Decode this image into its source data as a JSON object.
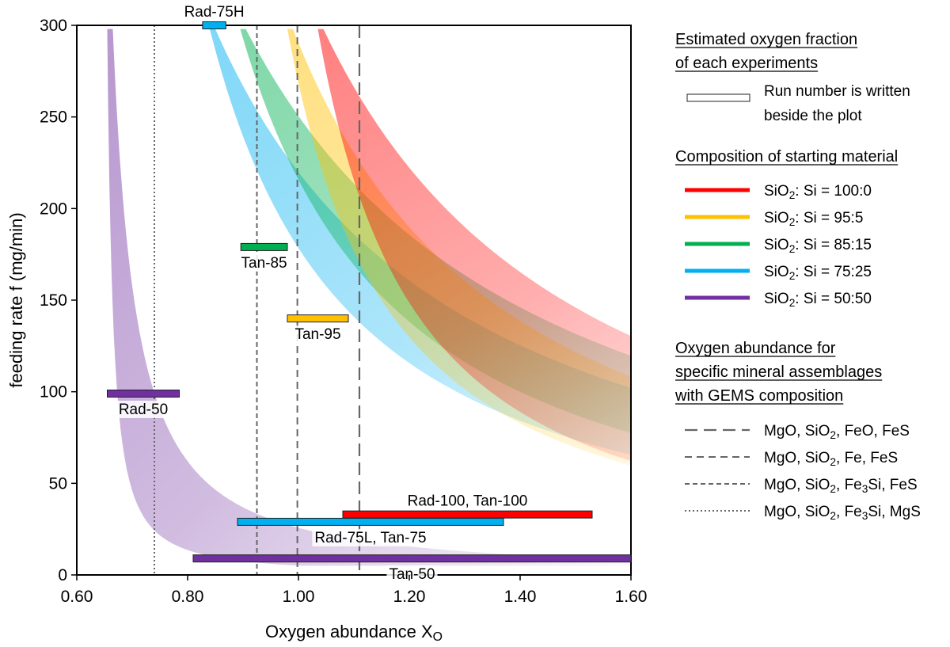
{
  "chart_data": {
    "type": "scatter",
    "xlabel": "Oxygen abundance X",
    "xlabel_sub": "O",
    "ylabel": "feeding rate f (mg/min)",
    "xlim": [
      0.6,
      1.6
    ],
    "ylim": [
      0,
      300
    ],
    "x_ticks": [
      "0.60",
      "0.80",
      "1.00",
      "1.20",
      "1.40",
      "1.60"
    ],
    "y_ticks": [
      "0",
      "50",
      "100",
      "150",
      "200",
      "250",
      "300"
    ],
    "bands": [
      {
        "color": "#7030a0",
        "x_top": 0.66,
        "y_top": 298,
        "k_left": 0.012,
        "k_right": 0.05
      },
      {
        "color": "#00b0f0",
        "x_top": 0.845,
        "y_top": 298,
        "k_left": 0.3,
        "k_right": 0.52
      },
      {
        "color": "#00b050",
        "x_top": 0.9,
        "y_top": 298,
        "k_left": 0.34,
        "k_right": 0.61
      },
      {
        "color": "#ffc000",
        "x_top": 0.985,
        "y_top": 298,
        "k_left": 0.22,
        "k_right": 0.46
      },
      {
        "color": "#ff0000",
        "x_top": 1.04,
        "y_top": 298,
        "k_left": 0.21,
        "k_right": 0.56
      }
    ],
    "runs": [
      {
        "label": "Rad-75H",
        "color": "#00b0f0",
        "x": [
          0.827,
          0.869
        ],
        "y": 300,
        "label_pos": "above"
      },
      {
        "label": "Tan-85",
        "color": "#00b050",
        "x": [
          0.896,
          0.98
        ],
        "y": 179,
        "label_pos": "below"
      },
      {
        "label": "Tan-95",
        "color": "#ffc000",
        "x": [
          0.98,
          1.09
        ],
        "y": 140,
        "label_pos": "below"
      },
      {
        "label": "Rad-50",
        "color": "#7030a0",
        "x": [
          0.655,
          0.785
        ],
        "y": 99,
        "label_pos": "below"
      },
      {
        "label": "Rad-100, Tan-100",
        "color": "#ff0000",
        "x": [
          1.08,
          1.53
        ],
        "y": 33,
        "label_pos": "above"
      },
      {
        "label": "Rad-75L, Tan-75",
        "color": "#00b0f0",
        "x": [
          0.89,
          1.37
        ],
        "y": 29,
        "label_pos": "below"
      },
      {
        "label": "Tan-50",
        "color": "#7030a0",
        "x": [
          0.81,
          1.6
        ],
        "y": 9,
        "label_pos": "below"
      }
    ],
    "vlines": [
      {
        "x": 1.11,
        "style": "long-dash",
        "legend": "MgO, SiO2, FeO, FeS"
      },
      {
        "x": 0.998,
        "style": "dash",
        "legend": "MgO, SiO2, Fe, FeS"
      },
      {
        "x": 0.925,
        "style": "short-dash",
        "legend": "MgO, SiO2, Fe3Si, FeS"
      },
      {
        "x": 0.74,
        "style": "dot",
        "legend": "MgO, SiO2, Fe3Si, MgS"
      }
    ]
  },
  "legend": {
    "section1_title_line1": "Estimated oxygen fraction",
    "section1_title_line2": "of each experiments",
    "section1_item_line1": "Run number is written",
    "section1_item_line2": "beside the plot",
    "section2_title": "Composition of starting material",
    "compositions": [
      {
        "label": "SiO2: Si = 100:0",
        "color": "#ff0000"
      },
      {
        "label": "SiO2: Si = 95:5",
        "color": "#ffc000"
      },
      {
        "label": "SiO2: Si = 85:15",
        "color": "#00b050"
      },
      {
        "label": "SiO2: Si = 75:25",
        "color": "#00b0f0"
      },
      {
        "label": "SiO2: Si = 50:50",
        "color": "#7030a0"
      }
    ],
    "section3_title_line1": "Oxygen abundance for",
    "section3_title_line2": "specific mineral assemblages",
    "section3_title_line3": "with GEMS composition",
    "line_items": [
      {
        "label": "MgO, SiO2, FeO, FeS",
        "style": "long-dash"
      },
      {
        "label": "MgO, SiO2, Fe, FeS",
        "style": "dash"
      },
      {
        "label": "MgO, SiO2, Fe3Si, FeS",
        "style": "short-dash"
      },
      {
        "label": "MgO, SiO2, Fe3Si, MgS",
        "style": "dot"
      }
    ]
  }
}
